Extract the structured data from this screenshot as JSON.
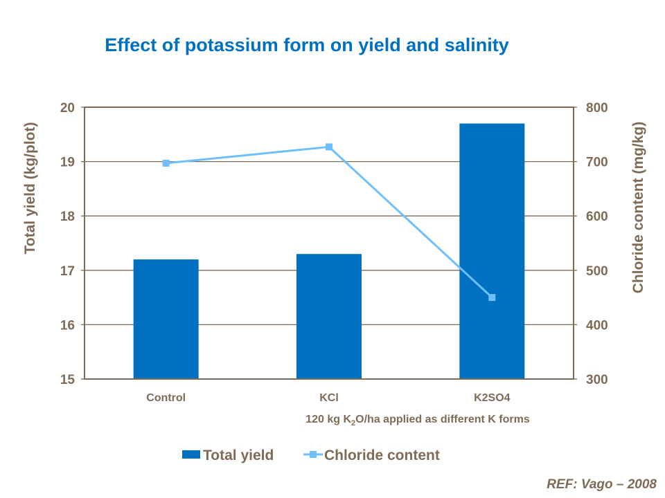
{
  "chart_data": {
    "type": "bar+line",
    "title": "Effect of potassium form on yield and salinity",
    "categories": [
      "Control",
      "KCl",
      "K2SO4"
    ],
    "xlabel": "120 kg K2O/ha applied as different K forms",
    "xlabel_parts": {
      "pre": "120 kg K",
      "sub": "2",
      "post": "O/ha applied as different K forms"
    },
    "ylabel_left": "Total yield (kg/plot)",
    "ylabel_right": "Chloride content (mg/kg)",
    "ylim_left": [
      15,
      20
    ],
    "ylim_right": [
      300,
      800
    ],
    "yticks_left": [
      "15",
      "16",
      "17",
      "18",
      "19",
      "20"
    ],
    "yticks_right": [
      "300",
      "400",
      "500",
      "600",
      "700",
      "800"
    ],
    "grid": true,
    "legend_position": "bottom",
    "series": [
      {
        "name": "Total yield",
        "type": "bar",
        "axis": "left",
        "color": "#0070c0",
        "values": [
          17.2,
          17.3,
          19.7
        ]
      },
      {
        "name": "Chloride content",
        "type": "line",
        "axis": "right",
        "color": "#6fbfff",
        "marker": "square",
        "values": [
          697,
          727,
          450
        ]
      }
    ],
    "annotation": "REF: Vago – 2008"
  }
}
